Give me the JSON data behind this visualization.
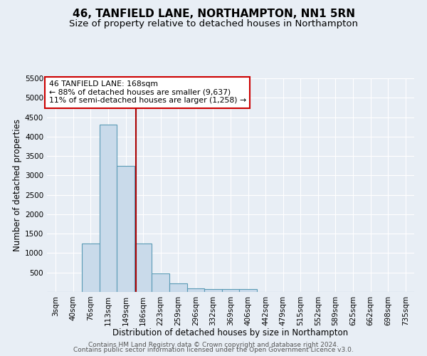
{
  "title1": "46, TANFIELD LANE, NORTHAMPTON, NN1 5RN",
  "title2": "Size of property relative to detached houses in Northampton",
  "xlabel": "Distribution of detached houses by size in Northampton",
  "ylabel": "Number of detached properties",
  "categories": [
    "3sqm",
    "40sqm",
    "76sqm",
    "113sqm",
    "149sqm",
    "186sqm",
    "223sqm",
    "259sqm",
    "296sqm",
    "332sqm",
    "369sqm",
    "406sqm",
    "442sqm",
    "479sqm",
    "515sqm",
    "552sqm",
    "589sqm",
    "625sqm",
    "662sqm",
    "698sqm",
    "735sqm"
  ],
  "values": [
    0,
    0,
    1250,
    4300,
    3250,
    1250,
    480,
    220,
    100,
    75,
    75,
    75,
    0,
    0,
    0,
    0,
    0,
    0,
    0,
    0,
    0
  ],
  "bar_color": "#c9daea",
  "bar_edge_color": "#5a9ab5",
  "bar_width": 1.0,
  "red_line_x": 4.57,
  "ylim": [
    0,
    5500
  ],
  "yticks": [
    0,
    500,
    1000,
    1500,
    2000,
    2500,
    3000,
    3500,
    4000,
    4500,
    5000,
    5500
  ],
  "annotation_box_text": "46 TANFIELD LANE: 168sqm\n← 88% of detached houses are smaller (9,637)\n11% of semi-detached houses are larger (1,258) →",
  "annotation_box_color": "#ffffff",
  "annotation_box_edge_color": "#cc0000",
  "background_color": "#e8eef5",
  "footer1": "Contains HM Land Registry data © Crown copyright and database right 2024.",
  "footer2": "Contains public sector information licensed under the Open Government Licence v3.0.",
  "title1_fontsize": 11,
  "title2_fontsize": 9.5,
  "xlabel_fontsize": 8.5,
  "ylabel_fontsize": 8.5,
  "tick_fontsize": 7.5,
  "footer_fontsize": 6.5
}
